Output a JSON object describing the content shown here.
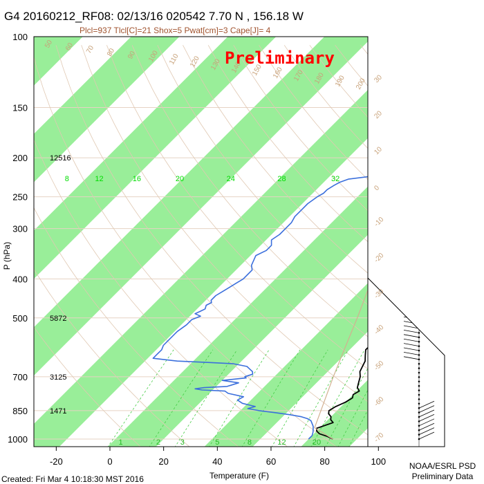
{
  "title": "G4 20160212_RF08: 02/13/16 020542   7.70 N , 156.18 W",
  "subtitle": "Plcl=937 Tlcl[C]=21 Shox=5 Pwat[cm]=3 Cape[J]= 4",
  "watermark": "Preliminary",
  "footer": {
    "created": "Created: Fri Mar  4 10:18:30 MST 2016",
    "org": "NOAA/ESRL PSD",
    "note": "Preliminary Data"
  },
  "colors": {
    "temperature": "#000000",
    "dewpoint": "#3b6fdc",
    "virtual_temp": "#cc0000",
    "isotherm_band": "#99ee99",
    "isobar": "#e6d2c3",
    "dry_adiabat": "#e0c8b2",
    "mixing_ratio": "#44cc44",
    "parcel": "#d2b090",
    "frame": "#000000"
  },
  "chart_data": {
    "type": "skew-t",
    "xlabel": "Temperature (F)",
    "ylabel": "P (hPa)",
    "xlim": [
      -28,
      110
    ],
    "ylim": [
      1050,
      100
    ],
    "y_scale": "log",
    "x_ticks": [
      "-20",
      "0",
      "20",
      "40",
      "60",
      "80",
      "100"
    ],
    "x_tick_values": [
      -20,
      0,
      20,
      40,
      60,
      80,
      100
    ],
    "y_ticks": [
      "100",
      "150",
      "200",
      "250",
      "300",
      "400",
      "500",
      "700",
      "850",
      "1000"
    ],
    "y_tick_values": [
      100,
      150,
      200,
      250,
      300,
      400,
      500,
      700,
      850,
      1000
    ],
    "height_labels": [
      {
        "p": 200,
        "label": "12516"
      },
      {
        "p": 500,
        "label": "5872"
      },
      {
        "p": 700,
        "label": "3125"
      },
      {
        "p": 850,
        "label": "1471"
      }
    ],
    "mixing_ratio_labels_top": [
      {
        "label": "8",
        "t": -16
      },
      {
        "label": "12",
        "t": -4
      },
      {
        "label": "16",
        "t": 10
      },
      {
        "label": "20",
        "t": 26
      },
      {
        "label": "24",
        "t": 45
      },
      {
        "label": "28",
        "t": 64
      },
      {
        "label": "32",
        "t": 84
      }
    ],
    "mixing_ratio_labels_bottom": [
      {
        "label": "1",
        "t": 4
      },
      {
        "label": "2",
        "t": 18
      },
      {
        "label": "3",
        "t": 27
      },
      {
        "label": "5",
        "t": 40
      },
      {
        "label": "8",
        "t": 52
      },
      {
        "label": "12",
        "t": 64
      },
      {
        "label": "20",
        "t": 77
      }
    ],
    "theta_labels": [
      "50",
      "60",
      "70",
      "80",
      "90",
      "100",
      "110",
      "120",
      "130",
      "140",
      "150",
      "160",
      "170",
      "180",
      "190",
      "200"
    ],
    "isotherm_labels": [
      "30",
      "20",
      "10",
      "0",
      "-10",
      "-20",
      "-30",
      "-40",
      "-50",
      "-60",
      "-70"
    ],
    "series": [
      {
        "name": "temperature",
        "points": [
          [
            1000,
            83
          ],
          [
            985,
            80
          ],
          [
            970,
            76
          ],
          [
            955,
            74
          ],
          [
            940,
            73
          ],
          [
            925,
            75
          ],
          [
            910,
            77
          ],
          [
            895,
            75
          ],
          [
            880,
            74
          ],
          [
            865,
            72
          ],
          [
            850,
            71
          ],
          [
            830,
            72
          ],
          [
            810,
            74
          ],
          [
            790,
            75
          ],
          [
            775,
            74
          ],
          [
            760,
            75
          ],
          [
            745,
            73
          ],
          [
            730,
            72
          ],
          [
            715,
            71
          ],
          [
            700,
            70
          ],
          [
            680,
            68
          ],
          [
            660,
            67
          ],
          [
            640,
            66
          ],
          [
            620,
            64
          ],
          [
            600,
            62
          ],
          [
            585,
            62
          ],
          [
            570,
            61
          ],
          [
            555,
            60
          ],
          [
            540,
            58
          ],
          [
            525,
            57
          ],
          [
            510,
            56
          ],
          [
            500,
            54
          ],
          [
            485,
            53
          ],
          [
            470,
            53
          ],
          [
            455,
            53
          ],
          [
            440,
            52
          ],
          [
            425,
            50
          ],
          [
            410,
            48
          ],
          [
            400,
            45
          ],
          [
            385,
            44
          ],
          [
            370,
            43
          ],
          [
            355,
            42
          ],
          [
            340,
            41
          ],
          [
            325,
            40
          ],
          [
            310,
            39
          ],
          [
            300,
            38
          ],
          [
            285,
            37
          ],
          [
            270,
            35
          ],
          [
            255,
            33
          ],
          [
            240,
            30
          ],
          [
            225,
            28
          ],
          [
            212,
            26
          ],
          [
            200,
            24
          ],
          [
            190,
            22
          ],
          [
            180,
            21
          ],
          [
            170,
            19
          ],
          [
            165,
            19
          ],
          [
            160,
            18
          ],
          [
            155,
            17
          ],
          [
            150,
            16
          ],
          [
            140,
            14
          ],
          [
            130,
            12
          ],
          [
            120,
            10
          ],
          [
            110,
            8
          ],
          [
            100,
            5
          ]
        ]
      },
      {
        "name": "dewpoint",
        "points": [
          [
            1000,
            74
          ],
          [
            980,
            74
          ],
          [
            960,
            73
          ],
          [
            945,
            72
          ],
          [
            930,
            71
          ],
          [
            910,
            69
          ],
          [
            900,
            68
          ],
          [
            890,
            66
          ],
          [
            880,
            63
          ],
          [
            870,
            58
          ],
          [
            860,
            52
          ],
          [
            850,
            45
          ],
          [
            840,
            40
          ],
          [
            830,
            42
          ],
          [
            825,
            40
          ],
          [
            815,
            36
          ],
          [
            800,
            33
          ],
          [
            785,
            34
          ],
          [
            770,
            27
          ],
          [
            760,
            25
          ],
          [
            755,
            16
          ],
          [
            750,
            13
          ],
          [
            745,
            16
          ],
          [
            740,
            24
          ],
          [
            735,
            25
          ],
          [
            725,
            27
          ],
          [
            715,
            20
          ],
          [
            705,
            28
          ],
          [
            700,
            27
          ],
          [
            690,
            29
          ],
          [
            680,
            28
          ],
          [
            670,
            26
          ],
          [
            660,
            24
          ],
          [
            650,
            18
          ],
          [
            645,
            8
          ],
          [
            640,
            -4
          ],
          [
            630,
            -14
          ],
          [
            615,
            -14
          ],
          [
            600,
            -14
          ],
          [
            585,
            -15
          ],
          [
            570,
            -15
          ],
          [
            555,
            -15
          ],
          [
            540,
            -15
          ],
          [
            520,
            -14
          ],
          [
            505,
            -14
          ],
          [
            495,
            -12
          ],
          [
            488,
            -15
          ],
          [
            482,
            -14
          ],
          [
            475,
            -13
          ],
          [
            465,
            -14
          ],
          [
            458,
            -13
          ],
          [
            452,
            -14
          ],
          [
            448,
            -14
          ],
          [
            440,
            -14
          ],
          [
            430,
            -13
          ],
          [
            420,
            -12
          ],
          [
            410,
            -11
          ],
          [
            400,
            -10
          ],
          [
            390,
            -10
          ],
          [
            380,
            -10
          ],
          [
            370,
            -12
          ],
          [
            360,
            -13
          ],
          [
            350,
            -14
          ],
          [
            340,
            -12
          ],
          [
            330,
            -12
          ],
          [
            320,
            -14
          ],
          [
            310,
            -13
          ],
          [
            300,
            -13
          ],
          [
            290,
            -13
          ],
          [
            280,
            -14
          ],
          [
            270,
            -14
          ],
          [
            260,
            -14
          ],
          [
            250,
            -13
          ],
          [
            245,
            -12
          ],
          [
            240,
            -12
          ],
          [
            234,
            -11
          ],
          [
            230,
            -10
          ],
          [
            226,
            -8
          ],
          [
            222,
            0
          ],
          [
            218,
            7
          ],
          [
            214,
            13
          ],
          [
            210,
            15
          ],
          [
            205,
            16
          ],
          [
            200,
            17
          ],
          [
            195,
            17
          ],
          [
            190,
            17
          ],
          [
            185,
            16
          ]
        ]
      },
      {
        "name": "virtual temperature",
        "points": [
          [
            360,
            41
          ],
          [
            350,
            40
          ],
          [
            340,
            40
          ]
        ]
      },
      {
        "name": "parcel",
        "points": [
          [
            1000,
            83
          ],
          [
            937,
            72
          ],
          [
            850,
            68
          ],
          [
            700,
            60
          ],
          [
            600,
            54
          ],
          [
            500,
            47
          ],
          [
            400,
            38
          ],
          [
            300,
            27
          ],
          [
            250,
            19
          ],
          [
            200,
            9
          ],
          [
            150,
            -4
          ]
        ]
      }
    ]
  }
}
